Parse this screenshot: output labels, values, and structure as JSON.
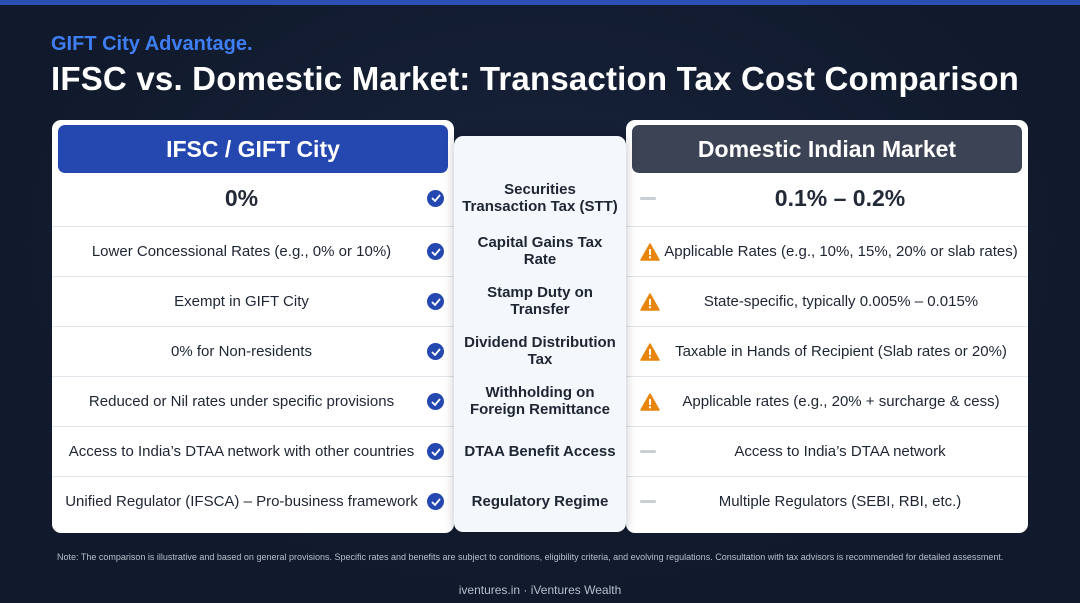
{
  "header": {
    "kicker": "GIFT City Advantage.",
    "title": "IFSC vs. Domestic Market: Transaction Tax Cost Comparison"
  },
  "colors": {
    "background": "#111a2c",
    "accent_blue": "#2448b0",
    "kicker_blue": "#3f7ef2",
    "domestic_header": "#3b4354",
    "warning_orange": "#e8850c",
    "neutral_dash": "#c9ced6"
  },
  "ifsc": {
    "heading": "IFSC / GIFT City",
    "rows": [
      {
        "text": "0%",
        "icon": "check-icon"
      },
      {
        "text": "Lower Concessional Rates (e.g., 0% or 10%)",
        "icon": "check-icon"
      },
      {
        "text": "Exempt in GIFT City",
        "icon": "check-icon"
      },
      {
        "text": "0% for Non-residents",
        "icon": "check-icon"
      },
      {
        "text": "Reduced or Nil rates under specific provisions",
        "icon": "check-icon"
      },
      {
        "text": "Access to India’s DTAA network with other countries",
        "icon": "check-icon"
      },
      {
        "text": "Unified Regulator (IFSCA) – Pro-business framework",
        "icon": "check-icon"
      }
    ]
  },
  "criteria": [
    "Securities Transaction Tax (STT)",
    "Capital Gains Tax Rate",
    "Stamp Duty on Transfer",
    "Dividend Distribution Tax",
    "Withholding on Foreign Remittance",
    "DTAA Benefit Access",
    "Regulatory Regime"
  ],
  "domestic": {
    "heading": "Domestic Indian Market",
    "rows": [
      {
        "text": "0.1% – 0.2%",
        "icon": "dash-icon"
      },
      {
        "text": "Applicable Rates (e.g., 10%, 15%, 20% or slab rates)",
        "icon": "warning-icon"
      },
      {
        "text": "State-specific, typically 0.005% – 0.015%",
        "icon": "warning-icon"
      },
      {
        "text": "Taxable in Hands of Recipient (Slab rates or 20%)",
        "icon": "warning-icon"
      },
      {
        "text": "Applicable rates (e.g., 20% + surcharge & cess)",
        "icon": "warning-icon"
      },
      {
        "text": "Access to India’s DTAA network",
        "icon": "dash-icon"
      },
      {
        "text": "Multiple Regulators (SEBI, RBI, etc.)",
        "icon": "dash-icon"
      }
    ]
  },
  "note": "Note: The comparison is illustrative and based on general provisions. Specific rates and benefits are subject to conditions, eligibility criteria, and evolving regulations. Consultation with tax advisors is recommended for detailed assessment.",
  "footer": "iventures.in · iVentures Wealth"
}
